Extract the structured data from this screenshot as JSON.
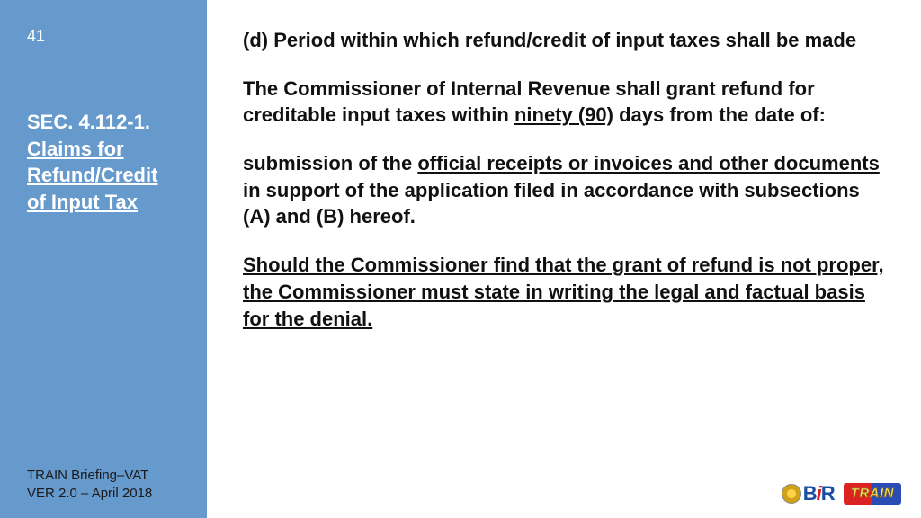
{
  "colors": {
    "sidebar_bg": "#6699cc",
    "sidebar_text": "#ffffff",
    "body_text": "#111111",
    "footer_text": "#1a1a1a",
    "page_bg": "#ffffff"
  },
  "typography": {
    "heading_fontsize_pt": 22,
    "body_fontsize_pt": 22,
    "page_number_fontsize_pt": 18,
    "footer_fontsize_pt": 15,
    "font_family": "Arial"
  },
  "sidebar": {
    "page_number": "41",
    "section_code": "SEC. 4.112-1.",
    "section_title_line1": "Claims for",
    "section_title_line2": "Refund/Credit",
    "section_title_line3": "of Input Tax"
  },
  "footer": {
    "line1": "TRAIN Briefing–VAT",
    "line2": "VER 2.0 – April 2018"
  },
  "content": {
    "heading": "(d) Period within which refund/credit of input taxes shall be made",
    "p1_a": "The Commissioner of Internal Revenue shall grant refund for creditable input taxes within ",
    "p1_u": "ninety (90)",
    "p1_b": " days from the date of:",
    "p2_a": "submission of the ",
    "p2_u": "official receipts or invoices and other documents",
    "p2_b": " in support of the application filed in accordance with subsections (A) and (B) hereof.",
    "p3_u": "Should the Commissioner find that the grant of refund is not proper, the Commissioner must state in writing the legal and factual basis for the denial."
  },
  "logos": {
    "bir_b": "B",
    "bir_i": "i",
    "bir_r": "R",
    "train": "TRAIN"
  }
}
